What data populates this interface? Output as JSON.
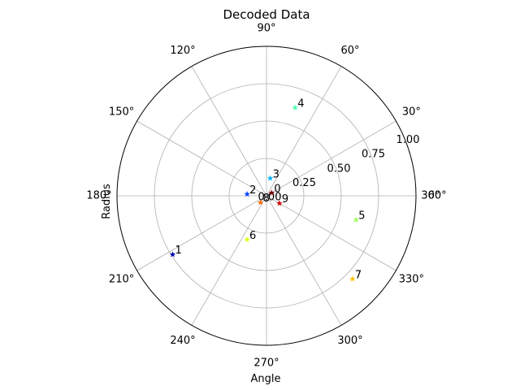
{
  "chart_data": {
    "type": "scatter",
    "projection": "polar",
    "title": "Decoded Data",
    "xlabel": "Angle",
    "ylabel": "Radius",
    "rlim": [
      0,
      1.0
    ],
    "r_ticks": [
      "0.00",
      "0.25",
      "0.50",
      "0.75",
      "1.00"
    ],
    "theta_ticks": [
      "0°",
      "30°",
      "60°",
      "90°",
      "120°",
      "150°",
      "180°",
      "210°",
      "240°",
      "270°",
      "300°",
      "330°",
      "360°"
    ],
    "grid": true,
    "points": [
      {
        "label": "0",
        "theta_deg": 30,
        "r": 0.04,
        "color": "#7f0000"
      },
      {
        "label": "1",
        "theta_deg": 212,
        "r": 0.74,
        "color": "#0000b2"
      },
      {
        "label": "2",
        "theta_deg": 175,
        "r": 0.13,
        "color": "#0044ff"
      },
      {
        "label": "3",
        "theta_deg": 78,
        "r": 0.12,
        "color": "#00b4ff"
      },
      {
        "label": "4",
        "theta_deg": 72,
        "r": 0.62,
        "color": "#4affad"
      },
      {
        "label": "5",
        "theta_deg": 345,
        "r": 0.62,
        "color": "#a0ff56"
      },
      {
        "label": "6",
        "theta_deg": 246,
        "r": 0.32,
        "color": "#e4ff13"
      },
      {
        "label": "7",
        "theta_deg": 316,
        "r": 0.8,
        "color": "#ffc400"
      },
      {
        "label": "8",
        "theta_deg": 228,
        "r": 0.06,
        "color": "#ff6800"
      },
      {
        "label": "9",
        "theta_deg": 330,
        "r": 0.1,
        "color": "#d10000"
      }
    ]
  }
}
